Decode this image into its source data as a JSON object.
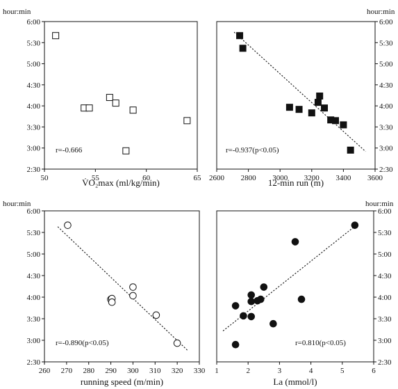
{
  "chart_data": [
    {
      "type": "scatter",
      "y_unit": "hour:min",
      "xlabel": "V̇O₂max (ml/kg/min)",
      "xlim": [
        50,
        65
      ],
      "ylim": [
        150,
        360
      ],
      "x_ticks": [
        "50",
        "55",
        "60",
        "65"
      ],
      "y_ticks": [
        "2:30",
        "3:00",
        "3:30",
        "4:00",
        "4:30",
        "5:00",
        "5:30",
        "6:00"
      ],
      "y_axis_side": "left",
      "marker": "open-square",
      "annotation": "r=-0.666",
      "trendline": null,
      "points": [
        [
          51.1,
          340
        ],
        [
          53.9,
          237
        ],
        [
          54.4,
          237
        ],
        [
          56.4,
          252
        ],
        [
          57.0,
          244
        ],
        [
          58.7,
          234
        ],
        [
          58.0,
          176
        ],
        [
          64.0,
          219
        ]
      ]
    },
    {
      "type": "scatter",
      "y_unit": "hour:min",
      "xlabel": "12-min run (m)",
      "xlim": [
        2600,
        3600
      ],
      "ylim": [
        150,
        360
      ],
      "x_ticks": [
        "2600",
        "2800",
        "3000",
        "3200",
        "3400",
        "3600"
      ],
      "y_ticks": [
        "2:30",
        "3:00",
        "3:30",
        "4:00",
        "4:30",
        "5:00",
        "5:30",
        "6:00"
      ],
      "y_axis_side": "right",
      "marker": "filled-square",
      "annotation": "r=-0.937(p<0.05)",
      "trendline": [
        [
          2710,
          345
        ],
        [
          3540,
          175
        ]
      ],
      "points": [
        [
          2745,
          340
        ],
        [
          2765,
          322
        ],
        [
          3060,
          238
        ],
        [
          3120,
          235
        ],
        [
          3200,
          230
        ],
        [
          3240,
          245
        ],
        [
          3250,
          254
        ],
        [
          3280,
          237
        ],
        [
          3320,
          220
        ],
        [
          3350,
          219
        ],
        [
          3400,
          213
        ],
        [
          3445,
          177
        ]
      ]
    },
    {
      "type": "scatter",
      "y_unit": "hour:min",
      "xlabel": "running speed (m/min)",
      "xlim": [
        260,
        330
      ],
      "ylim": [
        150,
        360
      ],
      "x_ticks": [
        "260",
        "270",
        "280",
        "290",
        "300",
        "310",
        "320",
        "330"
      ],
      "y_ticks": [
        "2:30",
        "3:00",
        "3:30",
        "4:00",
        "4:30",
        "5:00",
        "5:30",
        "6:00"
      ],
      "y_axis_side": "left",
      "marker": "open-circle",
      "annotation": "r=-0.890(p<0.05)",
      "trendline": [
        [
          266,
          338
        ],
        [
          325,
          165
        ]
      ],
      "points": [
        [
          270.5,
          340
        ],
        [
          290,
          237
        ],
        [
          290.5,
          238
        ],
        [
          290.5,
          233
        ],
        [
          300,
          254
        ],
        [
          300,
          242
        ],
        [
          310.5,
          215
        ],
        [
          320,
          176
        ]
      ]
    },
    {
      "type": "scatter",
      "y_unit": "hour:min",
      "xlabel": "La (mmol/l)",
      "xlim": [
        1,
        6
      ],
      "ylim": [
        150,
        360
      ],
      "x_ticks": [
        "1",
        "2",
        "3",
        "4",
        "5",
        "6"
      ],
      "y_ticks": [
        "2:30",
        "3:00",
        "3:30",
        "4:00",
        "4:30",
        "5:00",
        "5:30",
        "6:00"
      ],
      "y_axis_side": "right",
      "marker": "filled-circle",
      "annotation": "r=0.810(p<0.05)",
      "trendline": [
        [
          1.2,
          193
        ],
        [
          5.5,
          342
        ]
      ],
      "points": [
        [
          1.6,
          228
        ],
        [
          1.6,
          174
        ],
        [
          1.85,
          214
        ],
        [
          2.1,
          243
        ],
        [
          2.1,
          234
        ],
        [
          2.1,
          213
        ],
        [
          2.3,
          235
        ],
        [
          2.4,
          237
        ],
        [
          2.5,
          254
        ],
        [
          2.8,
          203
        ],
        [
          3.5,
          317
        ],
        [
          3.7,
          237
        ],
        [
          5.4,
          340
        ]
      ]
    }
  ]
}
